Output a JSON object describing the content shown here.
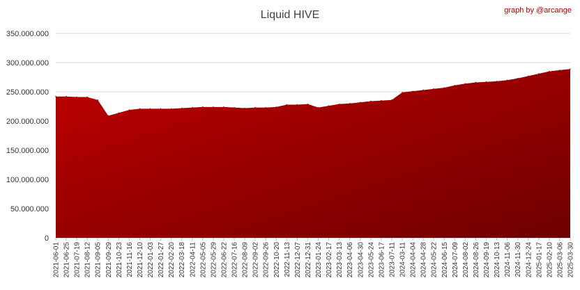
{
  "header": {
    "title": "Liquid HIVE",
    "credit": "graph by @arcange"
  },
  "colors": {
    "area_top": "#c00000",
    "area_bottom": "#6e0000",
    "grid": "#d9d9d9",
    "axis": "#bfbfbf",
    "credit": "#b00000"
  },
  "chart_data": {
    "type": "area",
    "title": "Liquid HIVE",
    "xlabel": "",
    "ylabel": "",
    "ylim": [
      0,
      350000000
    ],
    "grid": true,
    "yticks": [
      {
        "value": 0,
        "label": "0"
      },
      {
        "value": 50000000,
        "label": "50.000.000"
      },
      {
        "value": 100000000,
        "label": "100.000.000"
      },
      {
        "value": 150000000,
        "label": "150.000.000"
      },
      {
        "value": 200000000,
        "label": "200.000.000"
      },
      {
        "value": 250000000,
        "label": "250.000.000"
      },
      {
        "value": 300000000,
        "label": "300.000.000"
      },
      {
        "value": 350000000,
        "label": "350.000.000"
      }
    ],
    "categories": [
      "2021-06-01",
      "2021-06-25",
      "2021-07-19",
      "2021-08-12",
      "2021-09-05",
      "2021-09-29",
      "2021-10-23",
      "2021-11-16",
      "2021-12-10",
      "2022-01-03",
      "2022-01-27",
      "2022-02-20",
      "2022-03-18",
      "2022-04-11",
      "2022-05-05",
      "2022-05-29",
      "2022-06-22",
      "2022-07-16",
      "2022-08-09",
      "2022-09-02",
      "2022-09-26",
      "2022-10-20",
      "2022-11-13",
      "2022-12-07",
      "2022-12-31",
      "2023-01-24",
      "2023-02-17",
      "2023-03-13",
      "2023-04-06",
      "2023-04-30",
      "2023-05-24",
      "2023-06-17",
      "2023-07-11",
      "2024-03-11",
      "2024-04-04",
      "2024-04-28",
      "2024-05-22",
      "2024-06-15",
      "2024-07-09",
      "2024-08-02",
      "2024-08-26",
      "2024-09-19",
      "2024-10-13",
      "2024-11-06",
      "2024-11-30",
      "2024-12-24",
      "2025-01-17",
      "2025-02-10",
      "2025-03-06",
      "2025-03-30"
    ],
    "values": [
      242000000,
      242000000,
      241000000,
      241000000,
      236000000,
      209000000,
      214000000,
      219000000,
      221000000,
      221000000,
      221000000,
      221000000,
      222000000,
      223000000,
      224000000,
      224000000,
      224000000,
      223000000,
      222000000,
      223000000,
      223000000,
      224000000,
      228000000,
      228000000,
      229000000,
      223000000,
      226000000,
      229000000,
      230000000,
      232000000,
      234000000,
      235000000,
      236000000,
      249000000,
      251000000,
      253000000,
      255000000,
      257000000,
      261000000,
      264000000,
      266000000,
      267000000,
      268000000,
      270000000,
      273000000,
      277000000,
      281000000,
      285000000,
      287000000,
      289000000
    ]
  }
}
